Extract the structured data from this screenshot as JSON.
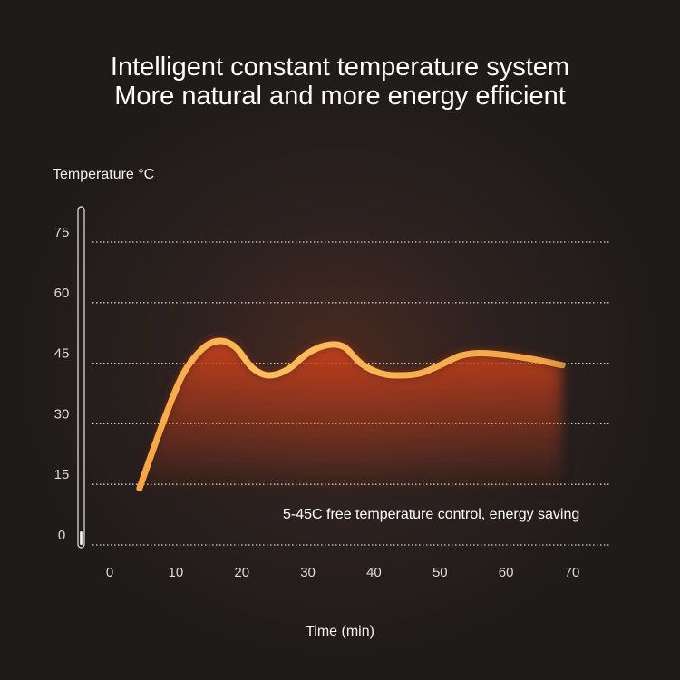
{
  "chart_data": {
    "type": "line",
    "title": "Intelligent constant temperature system",
    "subtitle": "More natural and more energy efficient",
    "ylabel": "Temperature °C",
    "xlabel": "Time (min)",
    "x_ticks": [
      "0",
      "10",
      "20",
      "30",
      "40",
      "50",
      "60",
      "70"
    ],
    "y_ticks": [
      "0",
      "15",
      "30",
      "45",
      "60",
      "75"
    ],
    "xlim": [
      0,
      70
    ],
    "ylim": [
      0,
      75
    ],
    "grid": "horizontal-dotted",
    "annotation": "5-45C free temperature control, energy saving",
    "series": [
      {
        "x": [
          4.5,
          8,
          11,
          14,
          16.5,
          19,
          21.5,
          24,
          27,
          30,
          33,
          35.5,
          38,
          41,
          44,
          47,
          50,
          53,
          56,
          60,
          64,
          68.5
        ],
        "y": [
          14,
          30,
          42,
          48.5,
          50.5,
          49,
          44,
          42,
          43.5,
          47.5,
          49.5,
          49,
          45,
          42.5,
          42,
          42.5,
          44.5,
          46.8,
          47.5,
          47,
          46,
          44.5
        ]
      }
    ],
    "colors": {
      "line_start": "#f7a640",
      "line_mid": "#ffbf5a",
      "line_end": "#f2a242",
      "fill": "#c8401c"
    }
  }
}
